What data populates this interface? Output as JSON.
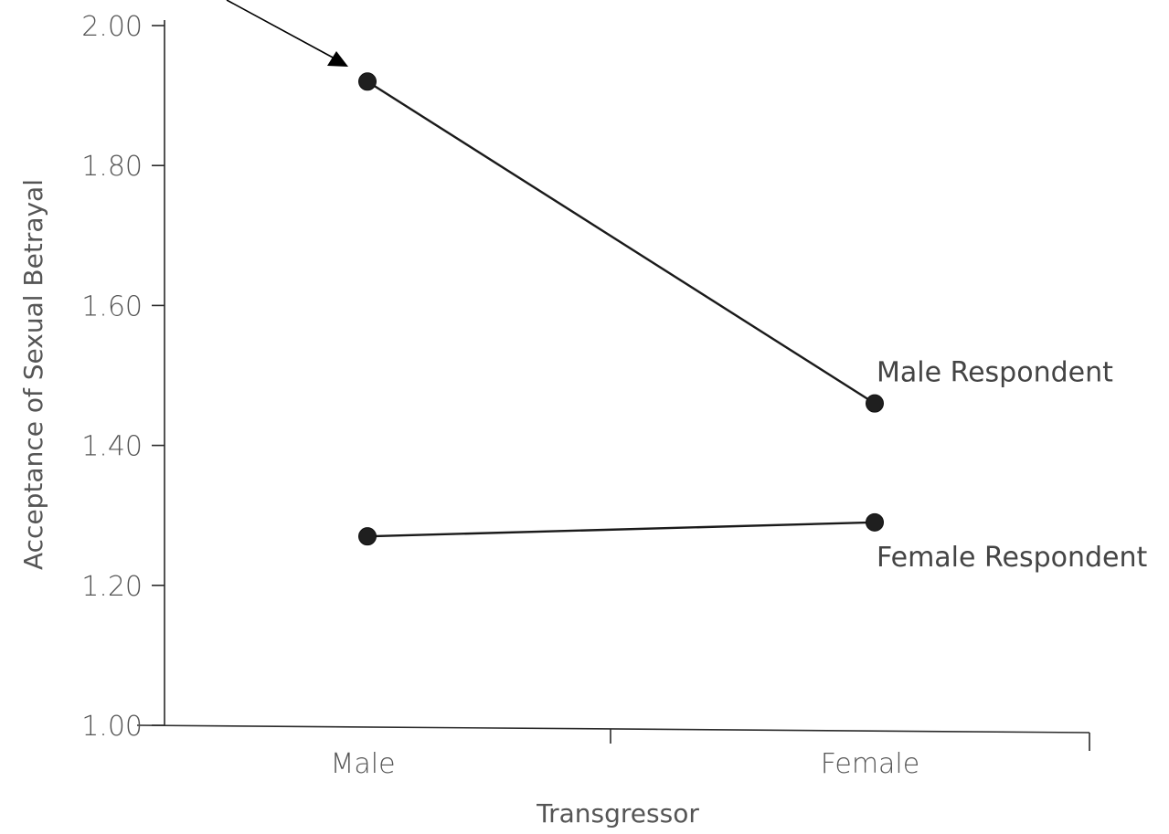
{
  "chart_data": {
    "type": "line",
    "title": "",
    "xlabel": "Transgressor",
    "ylabel": "Acceptance of Sexual Betrayal",
    "categories": [
      "Male",
      "Female"
    ],
    "ylim": [
      1.0,
      2.0
    ],
    "yticks": [
      "1.00",
      "1.20",
      "1.40",
      "1.60",
      "1.80",
      "2.00"
    ],
    "grid": false,
    "series": [
      {
        "name": "Male Respondent",
        "values": [
          1.92,
          1.46
        ]
      },
      {
        "name": "Female Respondent",
        "values": [
          1.27,
          1.29
        ]
      }
    ],
    "annotations": [
      {
        "type": "arrow",
        "points_to": "Male Respondent, Male"
      }
    ]
  }
}
